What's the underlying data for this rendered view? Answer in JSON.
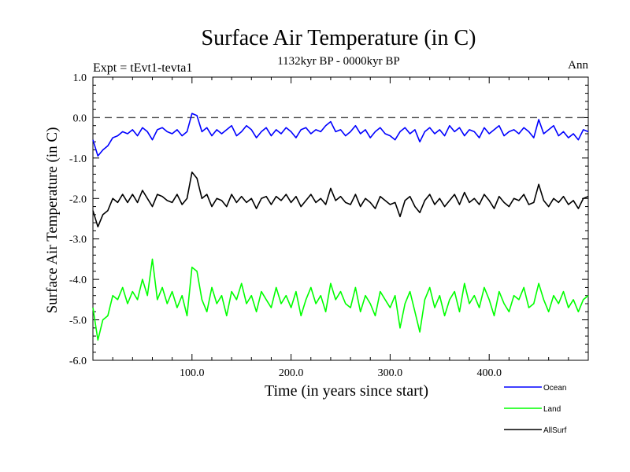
{
  "chart_data": {
    "type": "line",
    "title": "Surface Air Temperature (in C)",
    "subtitle": "1132kyr BP - 0000kyr BP",
    "experiment": "Expt = tEvt1-tevta1",
    "season": "Ann",
    "xlabel": "Time (in years since start)",
    "ylabel": "Surface Air Temperature (in C)",
    "xlim": [
      0,
      500
    ],
    "ylim": [
      -6.0,
      1.0
    ],
    "xticks": [
      100,
      200,
      300,
      400
    ],
    "xtick_labels": [
      "100.0",
      "200.0",
      "300.0",
      "400.0"
    ],
    "yticks": [
      1.0,
      0.0,
      -1.0,
      -2.0,
      -3.0,
      -4.0,
      -5.0,
      -6.0
    ],
    "ytick_labels": [
      "1.0",
      "0.0",
      "-1.0",
      "-2.0",
      "-3.0",
      "-4.0",
      "-5.0",
      "-6.0"
    ],
    "reference_line": 0.0,
    "series": [
      {
        "name": "Ocean",
        "color": "#0000ff",
        "x": [
          0,
          5,
          10,
          15,
          20,
          25,
          30,
          35,
          40,
          45,
          50,
          55,
          60,
          65,
          70,
          75,
          80,
          85,
          90,
          95,
          100,
          105,
          110,
          115,
          120,
          125,
          130,
          135,
          140,
          145,
          150,
          155,
          160,
          165,
          170,
          175,
          180,
          185,
          190,
          195,
          200,
          205,
          210,
          215,
          220,
          225,
          230,
          235,
          240,
          245,
          250,
          255,
          260,
          265,
          270,
          275,
          280,
          285,
          290,
          295,
          300,
          305,
          310,
          315,
          320,
          325,
          330,
          335,
          340,
          345,
          350,
          355,
          360,
          365,
          370,
          375,
          380,
          385,
          390,
          395,
          400,
          405,
          410,
          415,
          420,
          425,
          430,
          435,
          440,
          445,
          450,
          455,
          460,
          465,
          470,
          475,
          480,
          485,
          490,
          495,
          500
        ],
        "values": [
          -0.55,
          -0.95,
          -0.8,
          -0.7,
          -0.5,
          -0.45,
          -0.35,
          -0.4,
          -0.3,
          -0.45,
          -0.25,
          -0.35,
          -0.55,
          -0.3,
          -0.25,
          -0.35,
          -0.4,
          -0.3,
          -0.45,
          -0.35,
          0.1,
          0.05,
          -0.35,
          -0.25,
          -0.45,
          -0.3,
          -0.4,
          -0.3,
          -0.2,
          -0.45,
          -0.35,
          -0.2,
          -0.3,
          -0.5,
          -0.35,
          -0.25,
          -0.45,
          -0.3,
          -0.4,
          -0.25,
          -0.35,
          -0.5,
          -0.3,
          -0.25,
          -0.4,
          -0.3,
          -0.35,
          -0.2,
          -0.1,
          -0.35,
          -0.3,
          -0.45,
          -0.35,
          -0.2,
          -0.4,
          -0.3,
          -0.5,
          -0.35,
          -0.25,
          -0.4,
          -0.45,
          -0.55,
          -0.35,
          -0.25,
          -0.4,
          -0.3,
          -0.6,
          -0.35,
          -0.25,
          -0.4,
          -0.3,
          -0.45,
          -0.2,
          -0.35,
          -0.25,
          -0.45,
          -0.3,
          -0.35,
          -0.5,
          -0.25,
          -0.4,
          -0.3,
          -0.2,
          -0.45,
          -0.35,
          -0.3,
          -0.4,
          -0.25,
          -0.35,
          -0.5,
          -0.05,
          -0.4,
          -0.3,
          -0.2,
          -0.45,
          -0.35,
          -0.5,
          -0.4,
          -0.55,
          -0.3,
          -0.35
        ]
      },
      {
        "name": "Land",
        "color": "#00ff00",
        "x": [
          0,
          5,
          10,
          15,
          20,
          25,
          30,
          35,
          40,
          45,
          50,
          55,
          60,
          65,
          70,
          75,
          80,
          85,
          90,
          95,
          100,
          105,
          110,
          115,
          120,
          125,
          130,
          135,
          140,
          145,
          150,
          155,
          160,
          165,
          170,
          175,
          180,
          185,
          190,
          195,
          200,
          205,
          210,
          215,
          220,
          225,
          230,
          235,
          240,
          245,
          250,
          255,
          260,
          265,
          270,
          275,
          280,
          285,
          290,
          295,
          300,
          305,
          310,
          315,
          320,
          325,
          330,
          335,
          340,
          345,
          350,
          355,
          360,
          365,
          370,
          375,
          380,
          385,
          390,
          395,
          400,
          405,
          410,
          415,
          420,
          425,
          430,
          435,
          440,
          445,
          450,
          455,
          460,
          465,
          470,
          475,
          480,
          485,
          490,
          495,
          500
        ],
        "values": [
          -4.7,
          -5.5,
          -5.0,
          -4.9,
          -4.4,
          -4.5,
          -4.2,
          -4.6,
          -4.3,
          -4.5,
          -4.0,
          -4.4,
          -3.5,
          -4.5,
          -4.2,
          -4.6,
          -4.3,
          -4.7,
          -4.4,
          -4.9,
          -3.7,
          -3.8,
          -4.5,
          -4.8,
          -4.2,
          -4.6,
          -4.4,
          -4.9,
          -4.3,
          -4.5,
          -4.1,
          -4.6,
          -4.4,
          -4.8,
          -4.3,
          -4.5,
          -4.7,
          -4.2,
          -4.6,
          -4.4,
          -4.7,
          -4.3,
          -4.9,
          -4.5,
          -4.2,
          -4.6,
          -4.4,
          -4.8,
          -4.1,
          -4.5,
          -4.3,
          -4.6,
          -4.7,
          -4.2,
          -4.8,
          -4.4,
          -4.6,
          -4.9,
          -4.3,
          -4.5,
          -4.7,
          -4.4,
          -5.2,
          -4.6,
          -4.3,
          -4.8,
          -5.3,
          -4.5,
          -4.2,
          -4.7,
          -4.4,
          -4.9,
          -4.5,
          -4.3,
          -4.8,
          -4.1,
          -4.6,
          -4.4,
          -4.7,
          -4.2,
          -4.5,
          -4.9,
          -4.3,
          -4.6,
          -4.8,
          -4.4,
          -4.5,
          -4.2,
          -4.7,
          -4.6,
          -4.1,
          -4.5,
          -4.8,
          -4.4,
          -4.6,
          -4.3,
          -4.7,
          -4.5,
          -4.8,
          -4.5,
          -4.4
        ]
      },
      {
        "name": "AllSurf",
        "color": "#000000",
        "x": [
          0,
          5,
          10,
          15,
          20,
          25,
          30,
          35,
          40,
          45,
          50,
          55,
          60,
          65,
          70,
          75,
          80,
          85,
          90,
          95,
          100,
          105,
          110,
          115,
          120,
          125,
          130,
          135,
          140,
          145,
          150,
          155,
          160,
          165,
          170,
          175,
          180,
          185,
          190,
          195,
          200,
          205,
          210,
          215,
          220,
          225,
          230,
          235,
          240,
          245,
          250,
          255,
          260,
          265,
          270,
          275,
          280,
          285,
          290,
          295,
          300,
          305,
          310,
          315,
          320,
          325,
          330,
          335,
          340,
          345,
          350,
          355,
          360,
          365,
          370,
          375,
          380,
          385,
          390,
          395,
          400,
          405,
          410,
          415,
          420,
          425,
          430,
          435,
          440,
          445,
          450,
          455,
          460,
          465,
          470,
          475,
          480,
          485,
          490,
          495,
          500
        ],
        "values": [
          -2.3,
          -2.7,
          -2.4,
          -2.3,
          -2.0,
          -2.1,
          -1.9,
          -2.1,
          -1.9,
          -2.1,
          -1.8,
          -2.0,
          -2.2,
          -1.9,
          -1.95,
          -2.05,
          -2.1,
          -1.9,
          -2.15,
          -2.0,
          -1.35,
          -1.5,
          -2.0,
          -1.9,
          -2.2,
          -2.0,
          -2.05,
          -2.2,
          -1.9,
          -2.1,
          -1.95,
          -2.1,
          -2.0,
          -2.25,
          -2.0,
          -1.95,
          -2.15,
          -1.95,
          -2.05,
          -1.9,
          -2.1,
          -1.95,
          -2.2,
          -2.05,
          -1.9,
          -2.1,
          -2.0,
          -2.15,
          -1.75,
          -2.05,
          -1.95,
          -2.1,
          -2.15,
          -1.9,
          -2.2,
          -2.0,
          -2.1,
          -2.25,
          -1.95,
          -2.05,
          -2.15,
          -2.1,
          -2.45,
          -2.05,
          -1.95,
          -2.2,
          -2.35,
          -2.05,
          -1.9,
          -2.15,
          -2.0,
          -2.2,
          -2.05,
          -1.9,
          -2.15,
          -1.85,
          -2.1,
          -2.0,
          -2.15,
          -1.9,
          -2.05,
          -2.25,
          -1.95,
          -2.1,
          -2.2,
          -2.0,
          -2.05,
          -1.9,
          -2.15,
          -2.1,
          -1.65,
          -2.05,
          -2.2,
          -2.0,
          -2.1,
          -1.95,
          -2.15,
          -2.05,
          -2.25,
          -2.0,
          -1.95
        ]
      }
    ],
    "legend": {
      "position": "bottom-right",
      "entries": [
        {
          "label": "Ocean",
          "color": "#0000ff"
        },
        {
          "label": "Land",
          "color": "#00ff00"
        },
        {
          "label": "AllSurf",
          "color": "#000000"
        }
      ]
    }
  }
}
